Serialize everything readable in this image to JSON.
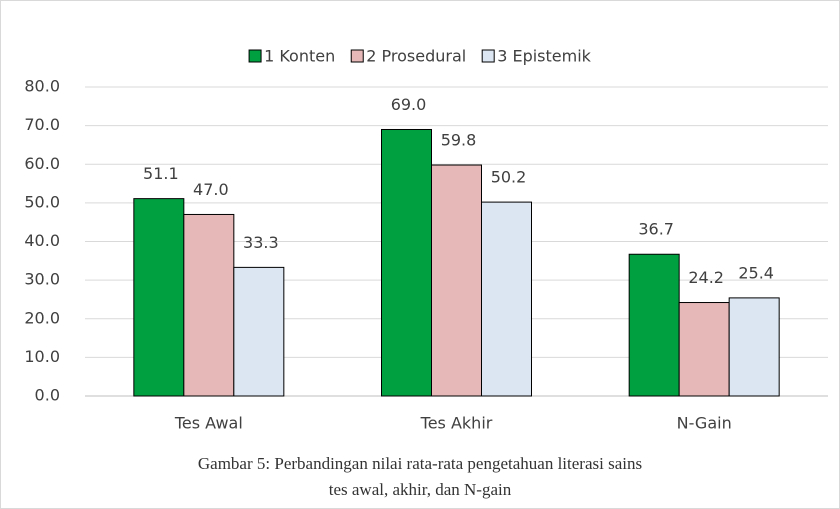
{
  "chart_data": {
    "type": "bar",
    "categories": [
      "Tes Awal",
      "Tes Akhir",
      "N-Gain"
    ],
    "series": [
      {
        "name": "1 Konten",
        "color": "#00a040",
        "values": [
          51.1,
          69.0,
          36.7
        ],
        "value_labels": [
          "51.1",
          "69.0",
          "36.7"
        ]
      },
      {
        "name": "2 Prosedural",
        "color": "#e6b8b7",
        "values": [
          47.0,
          59.8,
          24.2
        ],
        "value_labels": [
          "47.0",
          "59.8",
          "24.2"
        ]
      },
      {
        "name": "3 Epistemik",
        "color": "#dce6f2",
        "values": [
          33.3,
          50.2,
          25.4
        ],
        "value_labels": [
          "33.3",
          "50.2",
          "25.4"
        ]
      }
    ],
    "ylim": [
      0,
      80
    ],
    "yticks": [
      {
        "value": 0,
        "label": "0.0"
      },
      {
        "value": 10,
        "label": "10.0"
      },
      {
        "value": 20,
        "label": "20.0"
      },
      {
        "value": 30,
        "label": "30.0"
      },
      {
        "value": 40,
        "label": "40.0"
      },
      {
        "value": 50,
        "label": "50.0"
      },
      {
        "value": 60,
        "label": "60.0"
      },
      {
        "value": 70,
        "label": "70.0"
      },
      {
        "value": 80,
        "label": "80.0"
      }
    ],
    "grid": true,
    "legend": "top",
    "caption": [
      "Gambar 5: Perbandingan nilai rata-rata pengetahuan literasi sains",
      "tes awal, akhir, dan N-gain"
    ]
  }
}
